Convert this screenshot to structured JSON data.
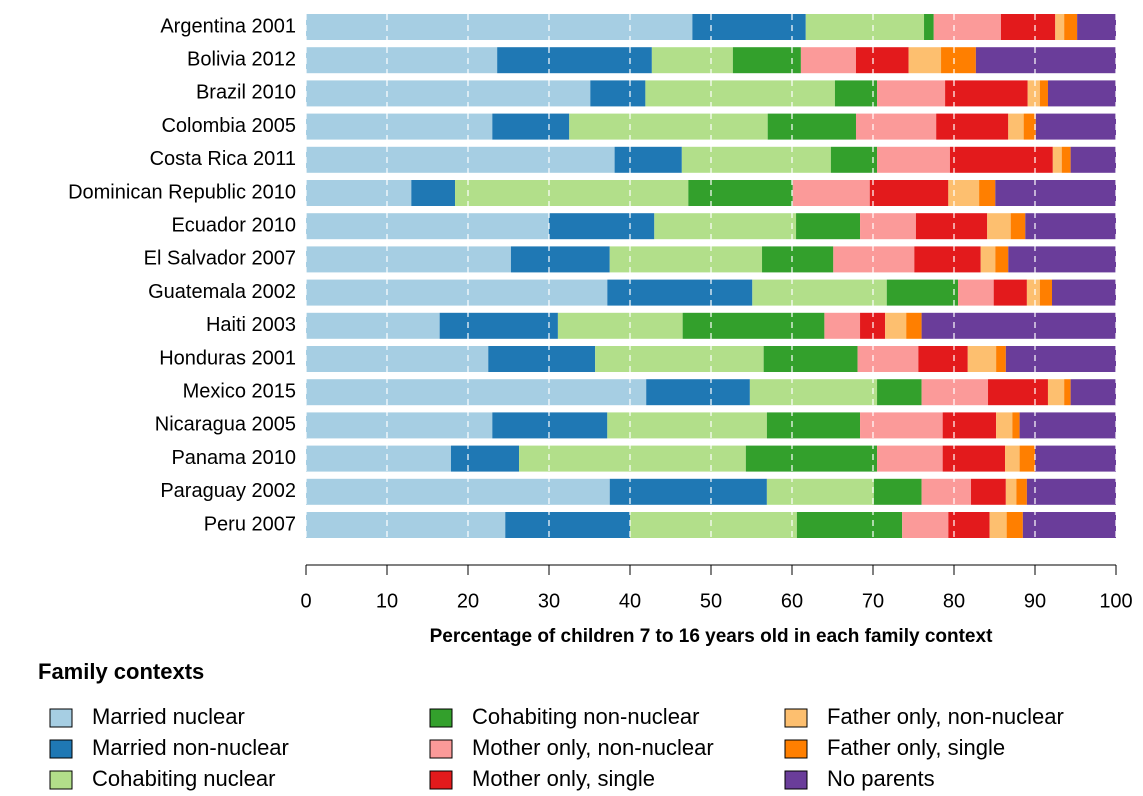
{
  "chart_data": {
    "type": "stacked-bar-horizontal",
    "x_label": "Percentage of children 7 to 16 years old in each family context",
    "legend_title": "Family contexts",
    "categories": [
      "Argentina 2001",
      "Bolivia 2012",
      "Brazil 2010",
      "Colombia 2005",
      "Costa Rica 2011",
      "Dominican Republic 2010",
      "Ecuador 2010",
      "El Salvador 2007",
      "Guatemala 2002",
      "Haiti 2003",
      "Honduras 2001",
      "Mexico 2015",
      "Nicaragua 2005",
      "Panama 2010",
      "Paraguay 2002",
      "Peru 2007"
    ],
    "series": [
      {
        "name": "Married nuclear",
        "color": "#a6cee3",
        "values": [
          47.7,
          23.6,
          35.1,
          23.0,
          38.1,
          13.0,
          30.0,
          25.3,
          37.2,
          16.5,
          22.5,
          42.0,
          23.0,
          17.9,
          37.5,
          24.6
        ]
      },
      {
        "name": "Married non-nuclear",
        "color": "#1f78b4",
        "values": [
          14.0,
          19.1,
          6.8,
          9.5,
          8.3,
          5.4,
          13.0,
          12.2,
          17.9,
          14.6,
          13.2,
          12.8,
          14.2,
          8.4,
          19.4,
          15.4
        ]
      },
      {
        "name": "Cohabiting nuclear",
        "color": "#b2df8a",
        "values": [
          14.6,
          10.0,
          23.4,
          24.5,
          18.4,
          28.8,
          17.5,
          18.8,
          16.6,
          15.4,
          20.8,
          15.7,
          19.7,
          28.0,
          13.2,
          20.6
        ]
      },
      {
        "name": "Cohabiting non-nuclear",
        "color": "#33a02c",
        "values": [
          1.2,
          8.4,
          5.2,
          10.9,
          5.7,
          12.9,
          7.9,
          8.8,
          8.8,
          17.5,
          11.6,
          5.5,
          11.5,
          16.2,
          5.9,
          13.0
        ]
      },
      {
        "name": "Mother only, non-nuclear",
        "color": "#fb9a99",
        "values": [
          8.3,
          6.8,
          8.4,
          9.9,
          9.0,
          9.5,
          6.9,
          10.0,
          4.4,
          4.4,
          7.5,
          8.2,
          10.2,
          8.1,
          6.1,
          5.7
        ]
      },
      {
        "name": "Mother only, single",
        "color": "#e31a1c",
        "values": [
          6.7,
          6.5,
          10.2,
          8.9,
          12.7,
          9.7,
          8.8,
          8.2,
          4.1,
          3.1,
          6.1,
          7.4,
          6.6,
          7.7,
          4.3,
          5.1
        ]
      },
      {
        "name": "Father only, non-nuclear",
        "color": "#fdbf6f",
        "values": [
          1.1,
          4.0,
          1.5,
          1.9,
          1.1,
          3.8,
          2.9,
          1.8,
          1.6,
          2.6,
          3.5,
          2.0,
          2.0,
          1.8,
          1.3,
          2.1
        ]
      },
      {
        "name": "Father only, single",
        "color": "#ff7f00",
        "values": [
          1.6,
          4.3,
          1.0,
          1.5,
          1.1,
          2.0,
          1.8,
          1.6,
          1.5,
          1.9,
          1.2,
          0.8,
          0.9,
          1.9,
          1.3,
          2.0
        ]
      },
      {
        "name": "No parents",
        "color": "#6a3d9a",
        "values": [
          4.8,
          17.3,
          8.4,
          9.9,
          5.6,
          14.9,
          11.2,
          13.3,
          7.9,
          24.0,
          13.6,
          5.6,
          11.9,
          10.0,
          11.0,
          11.5
        ]
      }
    ],
    "xlim": [
      0,
      100
    ],
    "xticks": [
      0,
      10,
      20,
      30,
      40,
      50,
      60,
      70,
      80,
      90,
      100
    ],
    "grid": true
  }
}
